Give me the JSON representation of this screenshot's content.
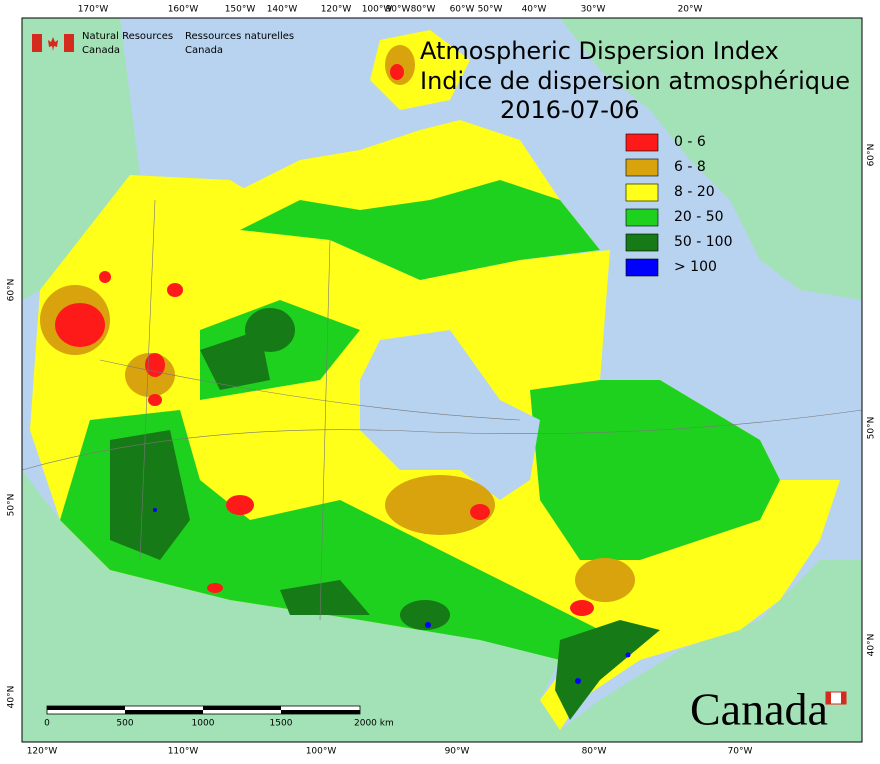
{
  "header": {
    "agency_en": [
      "Natural Resources",
      "Canada"
    ],
    "agency_fr": [
      "Ressources naturelles",
      "Canada"
    ]
  },
  "title": [
    "Atmospheric Dispersion Index",
    "Indice de dispersion atmosphérique"
  ],
  "date": "2016-07-06",
  "legend": [
    {
      "label": "0 - 6",
      "color": "#ff1a1a"
    },
    {
      "label": "6 - 8",
      "color": "#d9a30d"
    },
    {
      "label": "8 - 20",
      "color": "#ffff1a"
    },
    {
      "label": "20 - 50",
      "color": "#1fd11f"
    },
    {
      "label": "50 - 100",
      "color": "#167a16"
    },
    {
      "label": "> 100",
      "color": "#0000ff"
    }
  ],
  "top_labels": [
    "170°W",
    "160°W",
    "150°W",
    "140°W",
    "120°W",
    "100°W",
    "90°W",
    "80°W",
    "60°W",
    "50°W",
    "40°W",
    "30°W",
    "20°W"
  ],
  "bottom_labels": [
    "120°W",
    "110°W",
    "100°W",
    "90°W",
    "80°W",
    "70°W"
  ],
  "left_labels": [
    "60°N",
    "50°N",
    "40°N"
  ],
  "right_labels": [
    "60°N",
    "50°N",
    "40°N"
  ],
  "scale_labels": [
    "0",
    "500",
    "1000",
    "1500",
    "2000 km"
  ],
  "wordmark": "Canada"
}
